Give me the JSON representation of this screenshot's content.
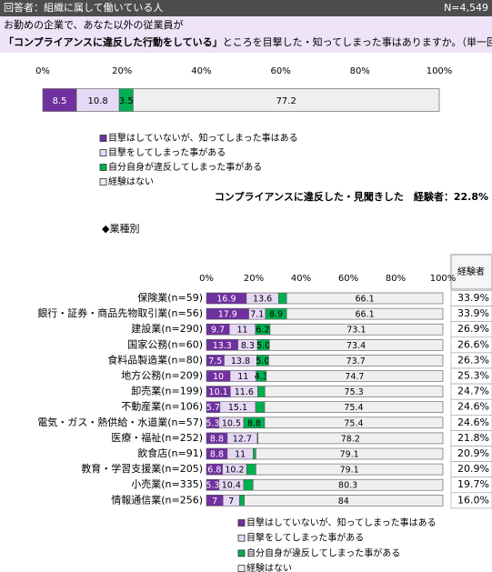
{
  "header": {
    "respondents": "回答者：組織に属して働いている人",
    "n": "N=4,549",
    "question_line1": "お勤めの企業で、あなた以外の従業員が",
    "question_line2_bold": "「コンプライアンスに違反した行動をしている」",
    "question_line2_rest": "ところを目撃した・知ってしまった事はありますか。（単一回答）"
  },
  "chart_data": [
    {
      "type": "bar",
      "orientation": "horizontal",
      "stacked": true,
      "xlim": [
        0,
        100
      ],
      "xticks": [
        {
          "value": 0,
          "label": "0%"
        },
        {
          "value": 20,
          "label": "20%"
        },
        {
          "value": 40,
          "label": "40%"
        },
        {
          "value": 60,
          "label": "60%"
        },
        {
          "value": 80,
          "label": "80%"
        },
        {
          "value": 100,
          "label": "100%"
        }
      ],
      "series": [
        {
          "name": "目撃はしていないが、知ってしまった事はある",
          "color": "#7030a0",
          "values": [
            8.5
          ]
        },
        {
          "name": "目撃をしてしまった事がある",
          "color": "#e6d9f5",
          "values": [
            10.8
          ]
        },
        {
          "name": "自分自身が違反してしまった事がある",
          "color": "#00b050",
          "values": [
            3.5
          ]
        },
        {
          "name": "経験はない",
          "color": "#efefef",
          "values": [
            77.2
          ]
        }
      ],
      "summary": "コンプライアンスに違反した・見聞きした　経験者：22.8%"
    },
    {
      "type": "bar",
      "orientation": "horizontal",
      "stacked": true,
      "section_title": "◆業種別",
      "xlim": [
        0,
        100
      ],
      "xticks": [
        {
          "value": 0,
          "label": "0%"
        },
        {
          "value": 20,
          "label": "20%"
        },
        {
          "value": 40,
          "label": "40%"
        },
        {
          "value": 60,
          "label": "60%"
        },
        {
          "value": 80,
          "label": "80%"
        },
        {
          "value": 100,
          "label": "100%"
        }
      ],
      "categories": [
        "保険業(n=59)",
        "銀行・証券・商品先物取引業(n=56)",
        "建設業(n=290)",
        "国家公務(n=60)",
        "食料品製造業(n=80)",
        "地方公務(n=209)",
        "卸売業(n=199)",
        "不動産業(n=106)",
        "電気・ガス・熱供給・水道業(n=57)",
        "医療・福祉(n=252)",
        "飲食店(n=91)",
        "教育・学習支援業(n=205)",
        "小売業(n=335)",
        "情報通信業(n=256)"
      ],
      "series": [
        {
          "name": "目撃はしていないが、知ってしまった事はある",
          "color": "#7030a0",
          "values": [
            16.9,
            17.9,
            9.7,
            13.3,
            7.5,
            10.0,
            10.1,
            5.7,
            5.3,
            8.8,
            8.8,
            6.8,
            5.3,
            7.0
          ]
        },
        {
          "name": "目撃をしてしまった事がある",
          "color": "#e6d9f5",
          "values": [
            13.6,
            7.1,
            11.0,
            8.3,
            13.8,
            11.0,
            11.6,
            15.1,
            10.5,
            12.7,
            11.0,
            10.2,
            10.4,
            7.0
          ]
        },
        {
          "name": "自分自身が違反してしまった事がある",
          "color": "#00b050",
          "values": [
            3.4,
            8.9,
            6.2,
            5.0,
            5.0,
            4.3,
            3.0,
            3.8,
            8.8,
            0.3,
            1.1,
            3.9,
            4.0,
            2.0
          ],
          "value_labels": [
            null,
            "8.9",
            "6.2",
            "5.0",
            "5.0",
            "4.3",
            null,
            null,
            "8.8",
            null,
            null,
            null,
            null,
            null
          ]
        },
        {
          "name": "経験はない",
          "color": "#efefef",
          "values": [
            66.1,
            66.1,
            73.1,
            73.4,
            73.7,
            74.7,
            75.3,
            75.4,
            75.4,
            78.2,
            79.1,
            79.1,
            80.3,
            84.0
          ]
        }
      ],
      "experienced": {
        "header": "経験者",
        "values": [
          33.9,
          33.9,
          26.9,
          26.6,
          26.3,
          25.3,
          24.7,
          24.6,
          24.6,
          21.8,
          20.9,
          20.9,
          19.7,
          16.0
        ],
        "value_labels": [
          "33.9%",
          "33.9%",
          "26.9%",
          "26.6%",
          "26.3%",
          "25.3%",
          "24.7%",
          "24.6%",
          "24.6%",
          "21.8%",
          "20.9%",
          "20.9%",
          "19.7%",
          "16.0%"
        ]
      }
    }
  ]
}
